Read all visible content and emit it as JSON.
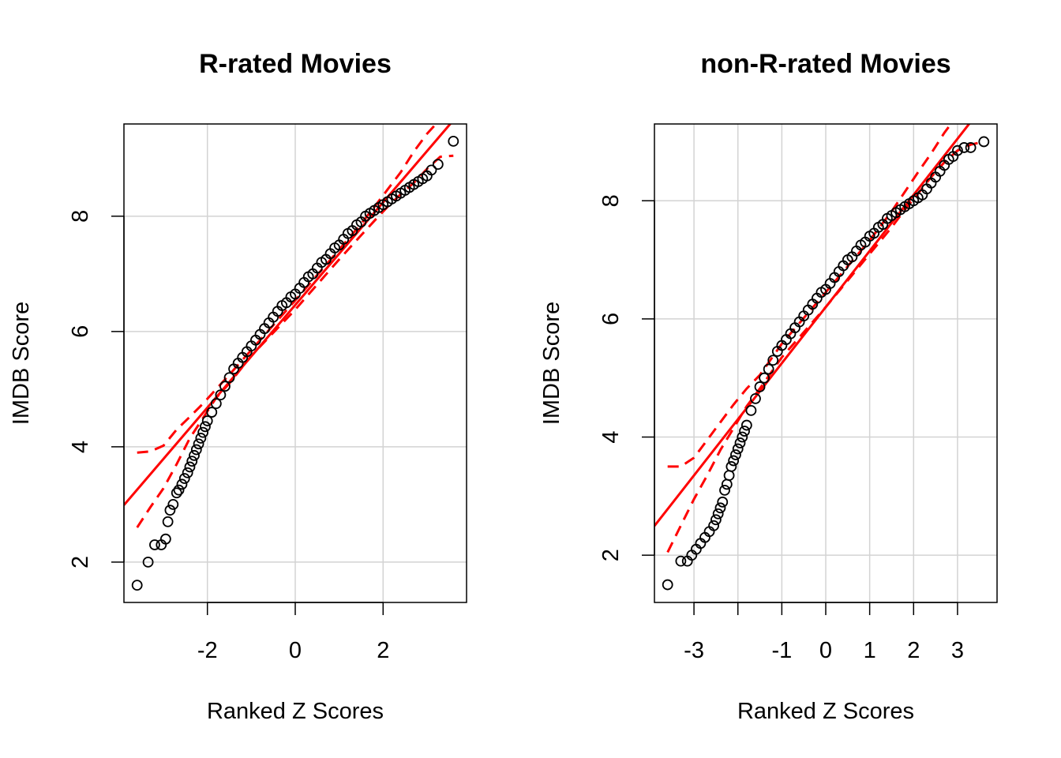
{
  "chart_data": [
    {
      "type": "scatter",
      "subtype": "qq-plot",
      "title": "R-rated Movies",
      "xlabel": "Ranked Z Scores",
      "ylabel": "IMDB Score",
      "xlim": [
        -3.9,
        3.9
      ],
      "ylim": [
        1.3,
        9.6
      ],
      "xticks": [
        -2,
        0,
        2
      ],
      "xtick_labels": [
        "-2",
        "0",
        "2"
      ],
      "yticks": [
        2,
        4,
        6,
        8
      ],
      "ytick_labels": [
        "2",
        "4",
        "6",
        "8"
      ],
      "grid": true,
      "grid_x": [
        -2,
        0,
        2
      ],
      "grid_y": [
        2,
        4,
        6,
        8
      ],
      "point_color": "#000000",
      "line_color": "#ff0000",
      "reference_line": {
        "intercept": 6.46,
        "slope": 0.89
      },
      "confidence_band": {
        "x": [
          -3.6,
          -3.3,
          -3.0,
          -2.7,
          -2.4,
          -2.1,
          -1.8,
          -1.5,
          -1.0,
          0.0,
          1.0,
          1.5,
          1.8,
          2.1,
          2.4,
          2.7,
          3.0,
          3.3,
          3.6
        ],
        "upper": [
          3.9,
          3.92,
          4.02,
          4.3,
          4.52,
          4.75,
          5.0,
          5.25,
          5.68,
          6.54,
          7.42,
          7.87,
          8.16,
          8.46,
          8.76,
          9.12,
          9.43,
          9.68,
          9.9
        ],
        "lower": [
          2.6,
          2.95,
          3.28,
          3.7,
          4.15,
          4.5,
          4.85,
          5.1,
          5.58,
          6.38,
          7.25,
          7.67,
          7.92,
          8.16,
          8.38,
          8.58,
          8.82,
          9.03,
          9.05
        ]
      },
      "points": {
        "x": [
          -3.6,
          -3.35,
          -3.2,
          -3.05,
          -2.95,
          -2.9,
          -2.85,
          -2.78,
          -2.7,
          -2.65,
          -2.58,
          -2.52,
          -2.45,
          -2.4,
          -2.35,
          -2.3,
          -2.25,
          -2.2,
          -2.15,
          -2.1,
          -2.05,
          -2.0,
          -1.9,
          -1.8,
          -1.7,
          -1.6,
          -1.5,
          -1.4,
          -1.3,
          -1.2,
          -1.1,
          -1.0,
          -0.9,
          -0.8,
          -0.7,
          -0.6,
          -0.5,
          -0.4,
          -0.3,
          -0.2,
          -0.1,
          0.0,
          0.1,
          0.2,
          0.3,
          0.4,
          0.5,
          0.6,
          0.7,
          0.8,
          0.9,
          1.0,
          1.1,
          1.2,
          1.3,
          1.4,
          1.5,
          1.6,
          1.7,
          1.8,
          1.9,
          2.0,
          2.1,
          2.2,
          2.3,
          2.4,
          2.5,
          2.6,
          2.7,
          2.8,
          2.9,
          3.0,
          3.1,
          3.25,
          3.6
        ],
        "y": [
          1.6,
          2.0,
          2.3,
          2.3,
          2.4,
          2.7,
          2.9,
          3.0,
          3.2,
          3.25,
          3.35,
          3.45,
          3.55,
          3.65,
          3.75,
          3.85,
          3.95,
          4.05,
          4.15,
          4.25,
          4.35,
          4.45,
          4.6,
          4.75,
          4.9,
          5.05,
          5.2,
          5.35,
          5.45,
          5.55,
          5.65,
          5.75,
          5.85,
          5.95,
          6.05,
          6.15,
          6.25,
          6.35,
          6.45,
          6.5,
          6.6,
          6.65,
          6.75,
          6.85,
          6.95,
          7.0,
          7.1,
          7.2,
          7.25,
          7.35,
          7.45,
          7.5,
          7.6,
          7.7,
          7.75,
          7.85,
          7.9,
          8.0,
          8.05,
          8.1,
          8.15,
          8.2,
          8.25,
          8.3,
          8.35,
          8.4,
          8.45,
          8.5,
          8.55,
          8.6,
          8.65,
          8.7,
          8.8,
          8.9,
          9.3
        ]
      }
    },
    {
      "type": "scatter",
      "subtype": "qq-plot",
      "title": "non-R-rated Movies",
      "xlabel": "Ranked Z Scores",
      "ylabel": "IMDB Score",
      "xlim": [
        -3.9,
        3.9
      ],
      "ylim": [
        1.2,
        9.3
      ],
      "xticks": [
        -3,
        -2,
        -1,
        0,
        1,
        2,
        3
      ],
      "xtick_labels": [
        "-3",
        "",
        "-1",
        "0",
        "1",
        "2",
        "3"
      ],
      "yticks": [
        2,
        4,
        6,
        8
      ],
      "ytick_labels": [
        "2",
        "4",
        "6",
        "8"
      ],
      "grid": true,
      "grid_x": [
        -3,
        -2,
        -1,
        0,
        1,
        2,
        3
      ],
      "grid_y": [
        2,
        4,
        6,
        8
      ],
      "point_color": "#000000",
      "line_color": "#ff0000",
      "reference_line": {
        "intercept": 6.2,
        "slope": 0.95
      },
      "confidence_band": {
        "x": [
          -3.6,
          -3.3,
          -3.0,
          -2.7,
          -2.4,
          -2.1,
          -1.8,
          -1.5,
          -1.0,
          0.0,
          1.0,
          1.5,
          1.8,
          2.1,
          2.4,
          2.7,
          3.0,
          3.3,
          3.6
        ],
        "upper": [
          3.5,
          3.5,
          3.65,
          3.95,
          4.25,
          4.55,
          4.82,
          5.05,
          5.58,
          6.45,
          7.33,
          7.82,
          8.15,
          8.48,
          8.8,
          9.15,
          9.45,
          9.75,
          10.05
        ],
        "lower": [
          2.05,
          2.5,
          2.95,
          3.35,
          3.78,
          4.15,
          4.52,
          4.82,
          5.35,
          6.2,
          7.1,
          7.55,
          7.85,
          8.12,
          8.4,
          8.65,
          8.85,
          8.95,
          9.0
        ]
      },
      "points": {
        "x": [
          -3.6,
          -3.3,
          -3.15,
          -3.05,
          -2.95,
          -2.85,
          -2.75,
          -2.65,
          -2.55,
          -2.5,
          -2.45,
          -2.4,
          -2.35,
          -2.3,
          -2.25,
          -2.2,
          -2.15,
          -2.1,
          -2.05,
          -2.0,
          -1.95,
          -1.9,
          -1.85,
          -1.8,
          -1.7,
          -1.6,
          -1.5,
          -1.4,
          -1.3,
          -1.2,
          -1.1,
          -1.0,
          -0.9,
          -0.8,
          -0.7,
          -0.6,
          -0.5,
          -0.4,
          -0.3,
          -0.2,
          -0.1,
          0.0,
          0.1,
          0.2,
          0.3,
          0.4,
          0.5,
          0.6,
          0.7,
          0.8,
          0.9,
          1.0,
          1.1,
          1.2,
          1.3,
          1.4,
          1.5,
          1.6,
          1.7,
          1.8,
          1.9,
          2.0,
          2.1,
          2.2,
          2.3,
          2.4,
          2.5,
          2.6,
          2.7,
          2.8,
          2.9,
          3.0,
          3.15,
          3.3,
          3.6
        ],
        "y": [
          1.5,
          1.9,
          1.9,
          2.0,
          2.1,
          2.2,
          2.3,
          2.4,
          2.5,
          2.6,
          2.7,
          2.8,
          2.9,
          3.1,
          3.2,
          3.35,
          3.5,
          3.6,
          3.7,
          3.8,
          3.9,
          4.0,
          4.1,
          4.2,
          4.45,
          4.65,
          4.85,
          5.0,
          5.15,
          5.3,
          5.45,
          5.55,
          5.65,
          5.75,
          5.85,
          5.95,
          6.05,
          6.15,
          6.25,
          6.35,
          6.45,
          6.5,
          6.6,
          6.7,
          6.8,
          6.9,
          7.0,
          7.05,
          7.15,
          7.25,
          7.3,
          7.4,
          7.45,
          7.55,
          7.6,
          7.7,
          7.75,
          7.8,
          7.85,
          7.9,
          7.95,
          8.0,
          8.05,
          8.1,
          8.2,
          8.3,
          8.4,
          8.5,
          8.6,
          8.7,
          8.75,
          8.85,
          8.9,
          8.9,
          9.0
        ]
      }
    }
  ]
}
